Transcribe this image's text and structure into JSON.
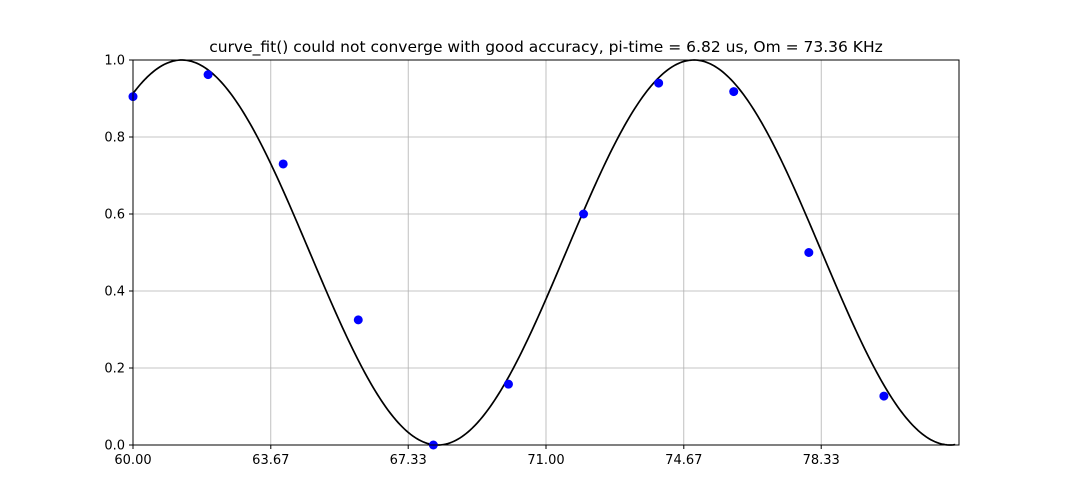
{
  "chart_data": {
    "type": "scatter",
    "title": "curve_fit() could not converge with good accuracy, pi-time = 6.82 us, Om = 73.36 KHz",
    "xlabel": "",
    "ylabel": "",
    "xlim": [
      60.0,
      82.0
    ],
    "ylim": [
      0.0,
      1.0
    ],
    "x_ticks": [
      60.0,
      63.67,
      67.33,
      71.0,
      74.67,
      78.33
    ],
    "x_tick_labels": [
      "60.00",
      "63.67",
      "67.33",
      "71.00",
      "74.67",
      "78.33"
    ],
    "y_ticks": [
      0.0,
      0.2,
      0.4,
      0.6,
      0.8,
      1.0
    ],
    "y_tick_labels": [
      "0.0",
      "0.2",
      "0.4",
      "0.6",
      "0.8",
      "1.0"
    ],
    "grid": true,
    "series": [
      {
        "kind": "points",
        "color": "#0000ff",
        "points": [
          {
            "x": 60.0,
            "y": 0.905
          },
          {
            "x": 62.0,
            "y": 0.962
          },
          {
            "x": 64.0,
            "y": 0.73
          },
          {
            "x": 66.0,
            "y": 0.325
          },
          {
            "x": 68.0,
            "y": 0.0
          },
          {
            "x": 70.0,
            "y": 0.158
          },
          {
            "x": 72.0,
            "y": 0.6
          },
          {
            "x": 74.0,
            "y": 0.94
          },
          {
            "x": 76.0,
            "y": 0.918
          },
          {
            "x": 78.0,
            "y": 0.5
          },
          {
            "x": 80.0,
            "y": 0.127
          }
        ]
      },
      {
        "kind": "fit-curve",
        "color": "#000000",
        "model": "0.5 + 0.5*cos(2*pi*(x - x0)/period)",
        "x0": 61.3,
        "period": 13.64,
        "x_range": [
          60.0,
          81.9
        ]
      }
    ]
  }
}
